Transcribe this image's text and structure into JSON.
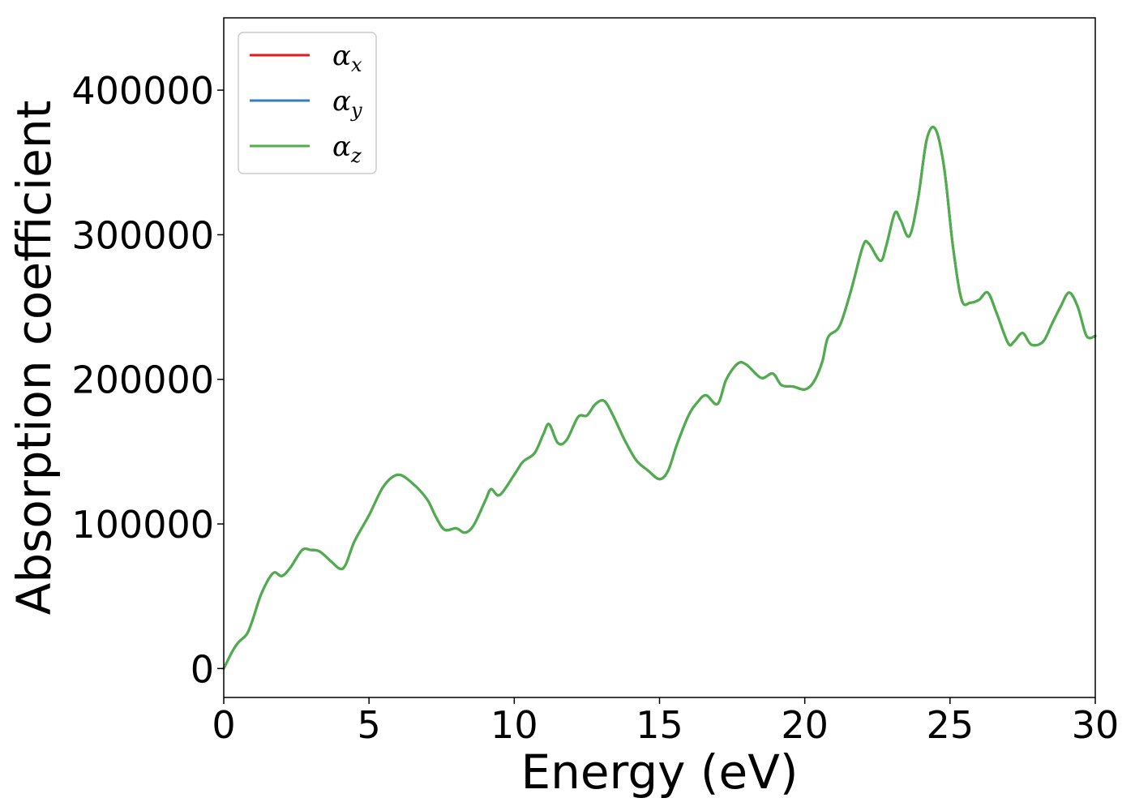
{
  "chart_data": {
    "type": "line",
    "xlabel": "Energy (eV)",
    "ylabel": "Absorption coefficient",
    "xlim": [
      0,
      30
    ],
    "ylim": [
      -20000,
      450000
    ],
    "xticks": [
      0,
      5,
      10,
      15,
      20,
      25,
      30
    ],
    "xtick_labels": [
      "0",
      "5",
      "10",
      "15",
      "20",
      "25",
      "30"
    ],
    "yticks": [
      0,
      100000,
      200000,
      300000,
      400000
    ],
    "ytick_labels": [
      "0",
      "100000",
      "200000",
      "300000",
      "400000"
    ],
    "grid": false,
    "legend_position": "top-left",
    "series": [
      {
        "name": "α",
        "subscript": "x",
        "color": "#e41a1c",
        "x": [
          0,
          0.3,
          0.5,
          0.8,
          1.0,
          1.3,
          1.7,
          2.0,
          2.3,
          2.7,
          3.0,
          3.3,
          3.7,
          4.0,
          4.2,
          4.5,
          5.0,
          5.5,
          6.0,
          6.5,
          7.0,
          7.3,
          7.6,
          8.0,
          8.3,
          8.6,
          9.0,
          9.2,
          9.5,
          10.0,
          10.3,
          10.7,
          11.0,
          11.2,
          11.5,
          11.8,
          12.2,
          12.5,
          12.8,
          13.1,
          13.4,
          13.8,
          14.2,
          14.6,
          15.0,
          15.3,
          15.6,
          16.0,
          16.3,
          16.6,
          17.0,
          17.3,
          17.7,
          18.0,
          18.5,
          18.9,
          19.2,
          19.6,
          20.0,
          20.3,
          20.6,
          20.8,
          21.2,
          21.6,
          22.0,
          22.2,
          22.6,
          22.8,
          23.1,
          23.3,
          23.6,
          23.9,
          24.2,
          24.5,
          24.8,
          25.1,
          25.4,
          25.7,
          26.0,
          26.3,
          26.6,
          27.0,
          27.2,
          27.5,
          27.8,
          28.2,
          28.5,
          28.8,
          29.1,
          29.4,
          29.7,
          30.0
        ],
        "y": [
          0,
          12000,
          18000,
          24000,
          34000,
          52000,
          66000,
          64000,
          70000,
          82000,
          82000,
          81000,
          74000,
          69000,
          72000,
          88000,
          106000,
          126000,
          134000,
          128000,
          117000,
          105000,
          96000,
          97000,
          94000,
          99000,
          116000,
          124000,
          120000,
          134000,
          143000,
          149000,
          162000,
          169000,
          156000,
          158000,
          174000,
          175000,
          183000,
          185000,
          175000,
          158000,
          144000,
          137000,
          131000,
          137000,
          155000,
          175000,
          184000,
          189000,
          183000,
          200000,
          211000,
          210000,
          201000,
          204000,
          196000,
          195000,
          193000,
          198000,
          212000,
          229000,
          237000,
          262000,
          292000,
          294000,
          282000,
          292000,
          315000,
          310000,
          299000,
          325000,
          366000,
          373000,
          346000,
          292000,
          255000,
          253000,
          255000,
          260000,
          246000,
          225000,
          226000,
          232000,
          224000,
          226000,
          238000,
          250000,
          260000,
          250000,
          230000,
          230000
        ]
      },
      {
        "name": "α",
        "subscript": "y",
        "color": "#377eb8",
        "x": [
          0,
          0.3,
          0.5,
          0.8,
          1.0,
          1.3,
          1.7,
          2.0,
          2.3,
          2.7,
          3.0,
          3.3,
          3.7,
          4.0,
          4.2,
          4.5,
          5.0,
          5.5,
          6.0,
          6.5,
          7.0,
          7.3,
          7.6,
          8.0,
          8.3,
          8.6,
          9.0,
          9.2,
          9.5,
          10.0,
          10.3,
          10.7,
          11.0,
          11.2,
          11.5,
          11.8,
          12.2,
          12.5,
          12.8,
          13.1,
          13.4,
          13.8,
          14.2,
          14.6,
          15.0,
          15.3,
          15.6,
          16.0,
          16.3,
          16.6,
          17.0,
          17.3,
          17.7,
          18.0,
          18.5,
          18.9,
          19.2,
          19.6,
          20.0,
          20.3,
          20.6,
          20.8,
          21.2,
          21.6,
          22.0,
          22.2,
          22.6,
          22.8,
          23.1,
          23.3,
          23.6,
          23.9,
          24.2,
          24.5,
          24.8,
          25.1,
          25.4,
          25.7,
          26.0,
          26.3,
          26.6,
          27.0,
          27.2,
          27.5,
          27.8,
          28.2,
          28.5,
          28.8,
          29.1,
          29.4,
          29.7,
          30.0
        ],
        "y": [
          0,
          12000,
          18000,
          24000,
          34000,
          52000,
          66000,
          64000,
          70000,
          82000,
          82000,
          81000,
          74000,
          69000,
          72000,
          88000,
          106000,
          126000,
          134000,
          128000,
          117000,
          105000,
          96000,
          97000,
          94000,
          99000,
          116000,
          124000,
          120000,
          134000,
          143000,
          149000,
          162000,
          169000,
          156000,
          158000,
          174000,
          175000,
          183000,
          185000,
          175000,
          158000,
          144000,
          137000,
          131000,
          137000,
          155000,
          175000,
          184000,
          189000,
          183000,
          200000,
          211000,
          210000,
          201000,
          204000,
          196000,
          195000,
          193000,
          198000,
          212000,
          229000,
          237000,
          262000,
          292000,
          294000,
          282000,
          292000,
          315000,
          310000,
          299000,
          325000,
          366000,
          373000,
          346000,
          292000,
          255000,
          253000,
          255000,
          260000,
          246000,
          225000,
          226000,
          232000,
          224000,
          226000,
          238000,
          250000,
          260000,
          250000,
          230000,
          230000
        ]
      },
      {
        "name": "α",
        "subscript": "z",
        "color": "#4daf4a",
        "x": [
          0,
          0.3,
          0.5,
          0.8,
          1.0,
          1.3,
          1.7,
          2.0,
          2.3,
          2.7,
          3.0,
          3.3,
          3.7,
          4.0,
          4.2,
          4.5,
          5.0,
          5.5,
          6.0,
          6.5,
          7.0,
          7.3,
          7.6,
          8.0,
          8.3,
          8.6,
          9.0,
          9.2,
          9.5,
          10.0,
          10.3,
          10.7,
          11.0,
          11.2,
          11.5,
          11.8,
          12.2,
          12.5,
          12.8,
          13.1,
          13.4,
          13.8,
          14.2,
          14.6,
          15.0,
          15.3,
          15.6,
          16.0,
          16.3,
          16.6,
          17.0,
          17.3,
          17.7,
          18.0,
          18.5,
          18.9,
          19.2,
          19.6,
          20.0,
          20.3,
          20.6,
          20.8,
          21.2,
          21.6,
          22.0,
          22.2,
          22.6,
          22.8,
          23.1,
          23.3,
          23.6,
          23.9,
          24.2,
          24.5,
          24.8,
          25.1,
          25.4,
          25.7,
          26.0,
          26.3,
          26.6,
          27.0,
          27.2,
          27.5,
          27.8,
          28.2,
          28.5,
          28.8,
          29.1,
          29.4,
          29.7,
          30.0
        ],
        "y": [
          0,
          12000,
          18000,
          24000,
          34000,
          52000,
          66000,
          64000,
          70000,
          82000,
          82000,
          81000,
          74000,
          69000,
          72000,
          88000,
          106000,
          126000,
          134000,
          128000,
          117000,
          105000,
          96000,
          97000,
          94000,
          99000,
          116000,
          124000,
          120000,
          134000,
          143000,
          149000,
          162000,
          169000,
          156000,
          158000,
          174000,
          175000,
          183000,
          185000,
          175000,
          158000,
          144000,
          137000,
          131000,
          137000,
          155000,
          175000,
          184000,
          189000,
          183000,
          200000,
          211000,
          210000,
          201000,
          204000,
          196000,
          195000,
          193000,
          198000,
          212000,
          229000,
          237000,
          262000,
          292000,
          294000,
          282000,
          292000,
          315000,
          310000,
          299000,
          325000,
          366000,
          373000,
          346000,
          292000,
          255000,
          253000,
          255000,
          260000,
          246000,
          225000,
          226000,
          232000,
          224000,
          226000,
          238000,
          250000,
          260000,
          250000,
          230000,
          230000
        ]
      }
    ]
  }
}
